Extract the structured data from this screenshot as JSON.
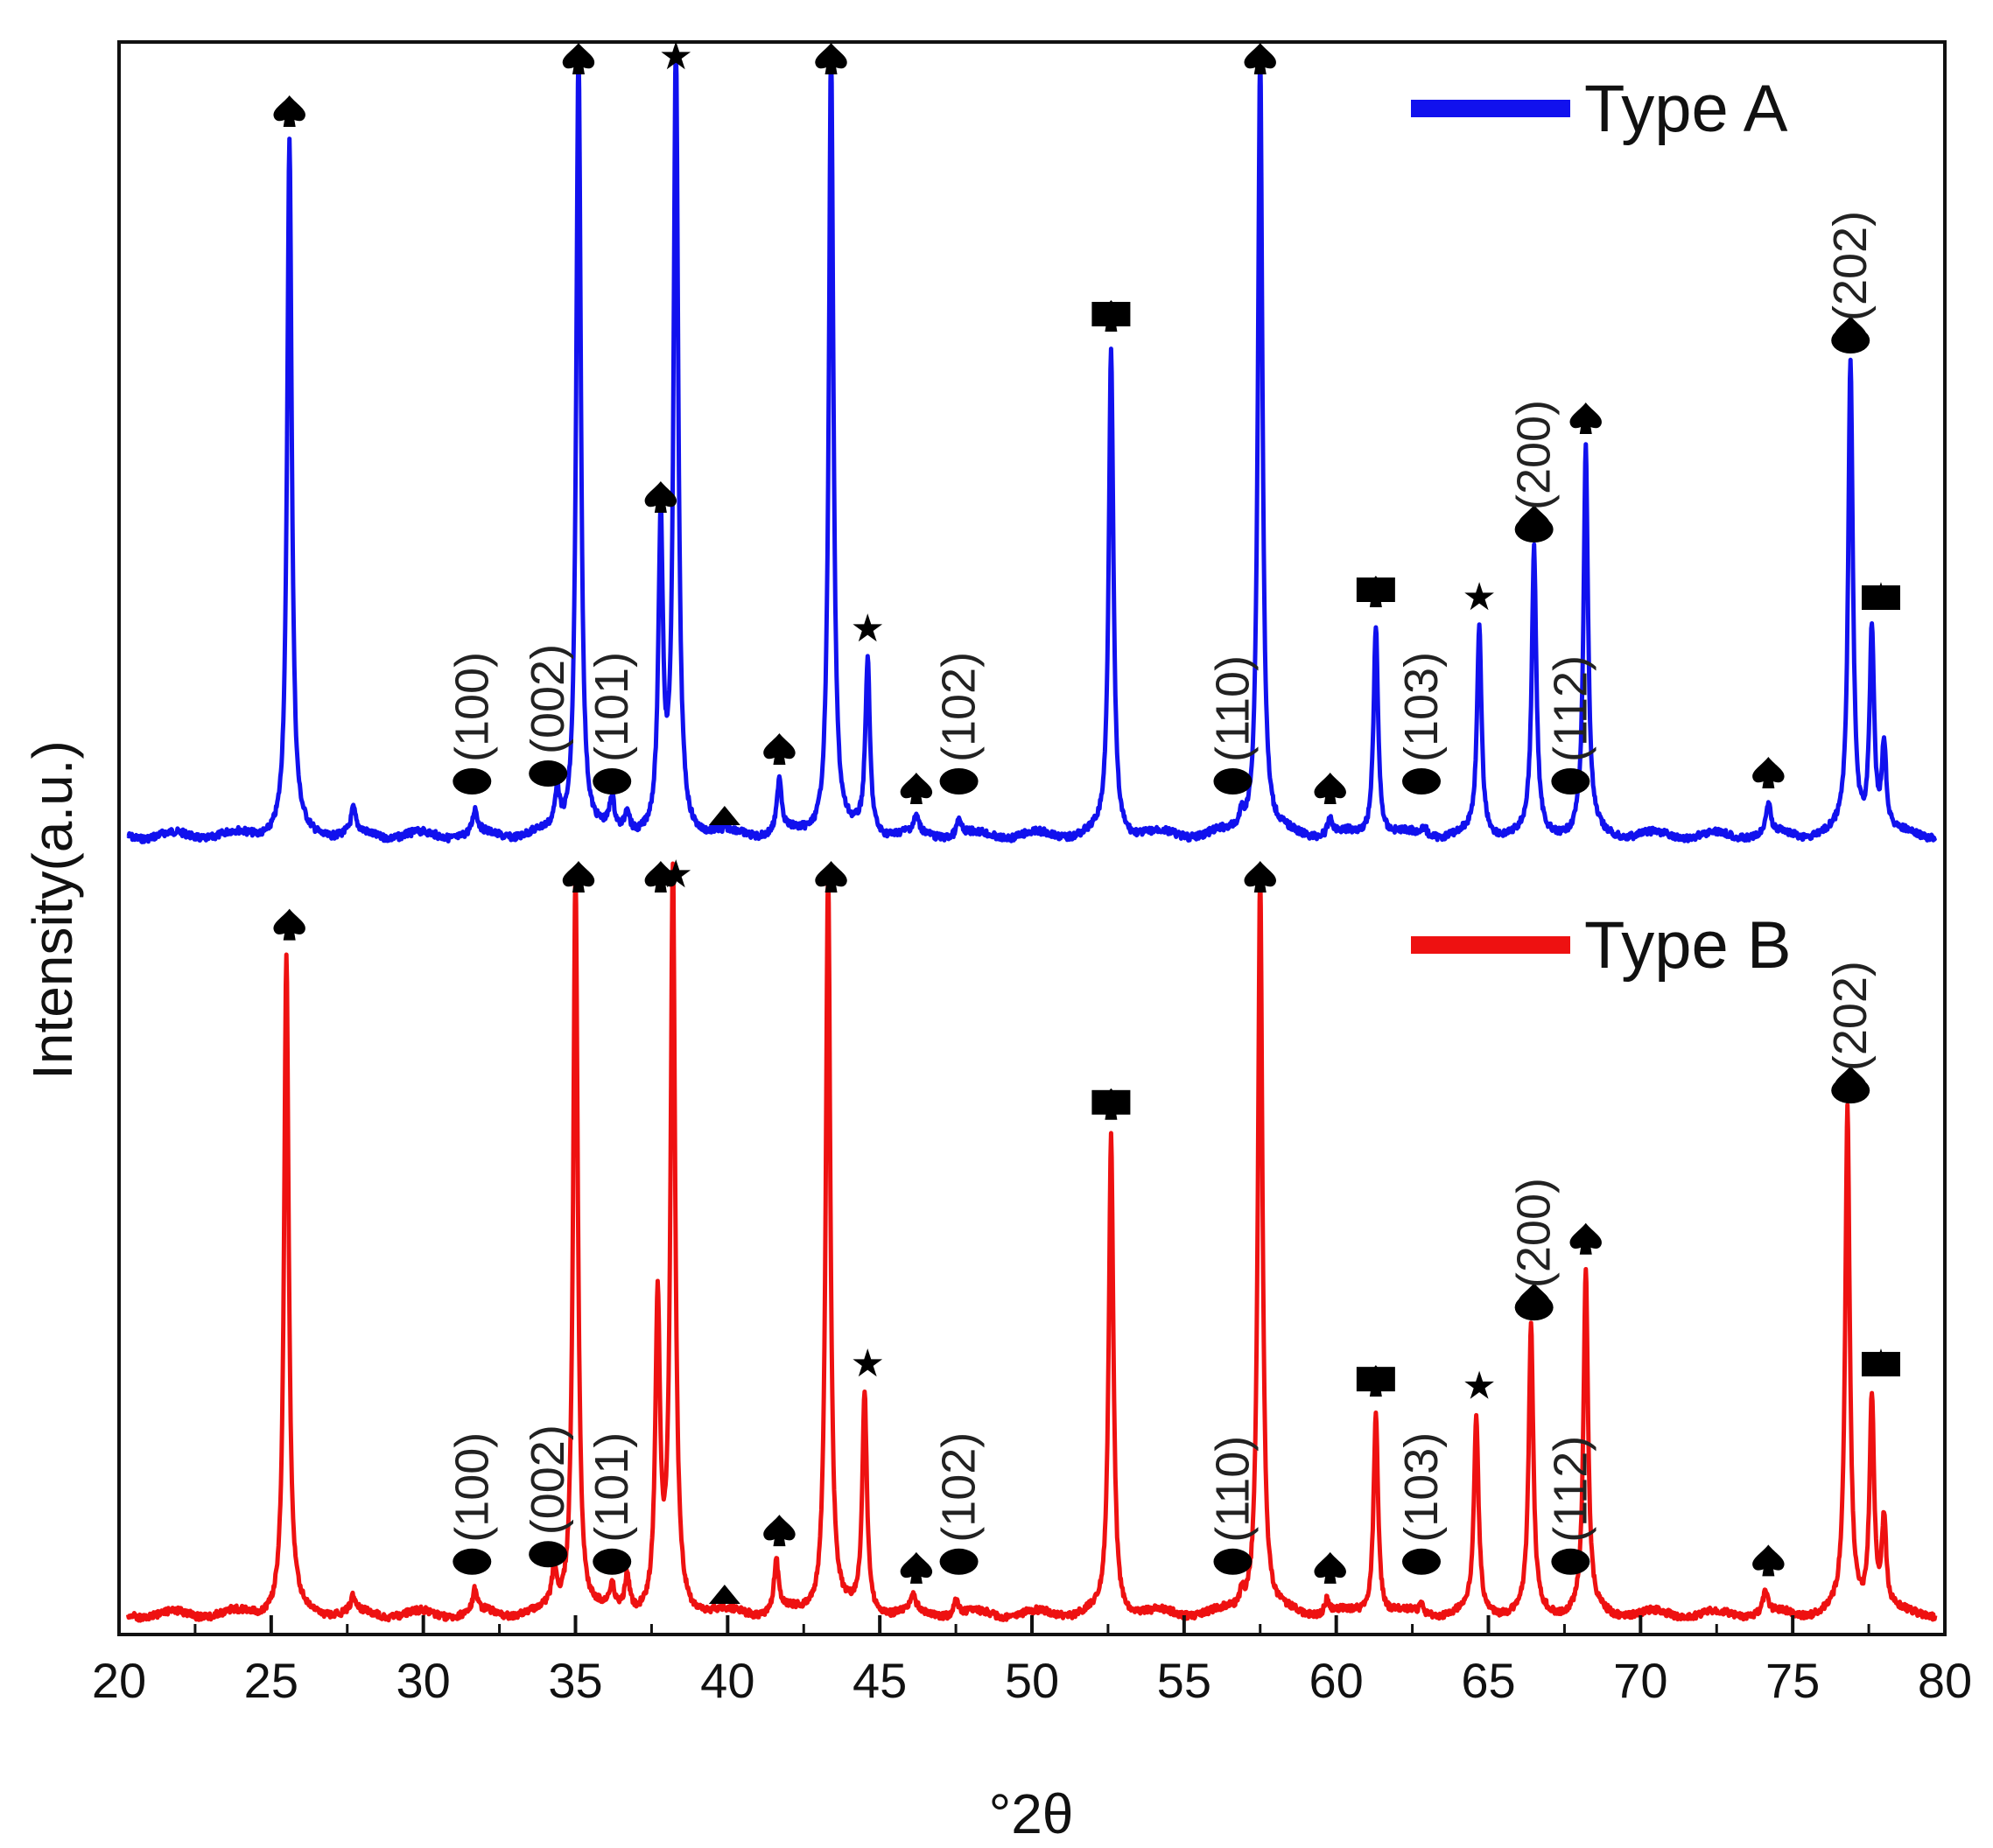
{
  "chart_data": {
    "type": "line",
    "title": "",
    "xlabel": "°2θ",
    "ylabel": "Intensity(a.u.)",
    "xlim": [
      20,
      80
    ],
    "x_ticks": [
      20,
      25,
      30,
      35,
      40,
      45,
      50,
      55,
      60,
      65,
      70,
      75,
      80
    ],
    "x_tick_labels": [
      "20",
      "25",
      "30",
      "35",
      "40",
      "45",
      "50",
      "55",
      "60",
      "65",
      "70",
      "75",
      "80"
    ],
    "legend_position": "top-right",
    "series": [
      {
        "name": "Type A",
        "color": "#1111ee",
        "panel": "top",
        "peaks": [
          {
            "x": 25.6,
            "y": 0.88
          },
          {
            "x": 27.7,
            "y": 0.03
          },
          {
            "x": 31.7,
            "y": 0.03
          },
          {
            "x": 34.4,
            "y": 0.05
          },
          {
            "x": 35.1,
            "y": 1.0
          },
          {
            "x": 36.2,
            "y": 0.04
          },
          {
            "x": 36.7,
            "y": 0.03
          },
          {
            "x": 37.8,
            "y": 0.39
          },
          {
            "x": 38.3,
            "y": 1.0
          },
          {
            "x": 41.7,
            "y": 0.07
          },
          {
            "x": 43.4,
            "y": 1.0
          },
          {
            "x": 44.6,
            "y": 0.22
          },
          {
            "x": 46.2,
            "y": 0.02
          },
          {
            "x": 47.6,
            "y": 0.02
          },
          {
            "x": 52.6,
            "y": 0.62
          },
          {
            "x": 56.9,
            "y": 0.02
          },
          {
            "x": 57.5,
            "y": 1.0
          },
          {
            "x": 59.8,
            "y": 0.02
          },
          {
            "x": 61.3,
            "y": 0.27
          },
          {
            "x": 62.9,
            "y": 0.01
          },
          {
            "x": 64.7,
            "y": 0.26
          },
          {
            "x": 66.5,
            "y": 0.36
          },
          {
            "x": 68.2,
            "y": 0.49
          },
          {
            "x": 74.2,
            "y": 0.04
          },
          {
            "x": 76.9,
            "y": 0.6
          },
          {
            "x": 77.6,
            "y": 0.26
          },
          {
            "x": 78.0,
            "y": 0.11
          }
        ]
      },
      {
        "name": "Type B",
        "color": "#ee1111",
        "panel": "bottom",
        "peaks": [
          {
            "x": 25.5,
            "y": 0.88
          },
          {
            "x": 27.7,
            "y": 0.02
          },
          {
            "x": 31.7,
            "y": 0.03
          },
          {
            "x": 34.3,
            "y": 0.05
          },
          {
            "x": 35.0,
            "y": 1.0
          },
          {
            "x": 36.2,
            "y": 0.03
          },
          {
            "x": 36.7,
            "y": 0.05
          },
          {
            "x": 37.7,
            "y": 0.41
          },
          {
            "x": 38.2,
            "y": 1.0
          },
          {
            "x": 41.6,
            "y": 0.07
          },
          {
            "x": 43.3,
            "y": 1.0
          },
          {
            "x": 44.5,
            "y": 0.29
          },
          {
            "x": 46.1,
            "y": 0.02
          },
          {
            "x": 47.5,
            "y": 0.02
          },
          {
            "x": 52.6,
            "y": 0.64
          },
          {
            "x": 56.9,
            "y": 0.02
          },
          {
            "x": 57.5,
            "y": 1.0
          },
          {
            "x": 59.7,
            "y": 0.02
          },
          {
            "x": 61.3,
            "y": 0.27
          },
          {
            "x": 62.8,
            "y": 0.01
          },
          {
            "x": 64.6,
            "y": 0.26
          },
          {
            "x": 66.4,
            "y": 0.38
          },
          {
            "x": 68.2,
            "y": 0.46
          },
          {
            "x": 74.1,
            "y": 0.03
          },
          {
            "x": 76.8,
            "y": 0.67
          },
          {
            "x": 77.6,
            "y": 0.29
          },
          {
            "x": 78.0,
            "y": 0.12
          }
        ]
      }
    ],
    "annotations": [
      {
        "label": "(100)",
        "x": 31.6,
        "marker": "ellipse"
      },
      {
        "label": "(002)",
        "x": 34.1,
        "marker": "ellipse"
      },
      {
        "label": "(101)",
        "x": 36.2,
        "marker": "ellipse"
      },
      {
        "label": "(102)",
        "x": 47.6,
        "marker": "ellipse"
      },
      {
        "label": "(110)",
        "x": 56.6,
        "marker": "ellipse"
      },
      {
        "label": "(103)",
        "x": 62.8,
        "marker": "ellipse"
      },
      {
        "label": "(200)",
        "x": 66.5,
        "marker": "ellipse"
      },
      {
        "label": "(112)",
        "x": 67.7,
        "marker": "ellipse"
      },
      {
        "label": "(202)",
        "x": 76.9,
        "marker": "ellipse"
      }
    ],
    "phase_markers": [
      {
        "x": 25.6,
        "symbol": "spade"
      },
      {
        "x": 35.1,
        "symbol": "spade"
      },
      {
        "x": 38.3,
        "symbol": "star"
      },
      {
        "x": 43.4,
        "symbol": "spade"
      },
      {
        "x": 57.5,
        "symbol": "spade"
      },
      {
        "x": 37.8,
        "symbol": "spade"
      },
      {
        "x": 44.6,
        "symbol": "star"
      },
      {
        "x": 41.7,
        "symbol": "spade"
      },
      {
        "x": 39.9,
        "symbol": "triangle"
      },
      {
        "x": 46.2,
        "symbol": "spade"
      },
      {
        "x": 52.6,
        "symbol": "spade"
      },
      {
        "x": 52.6,
        "symbol": "square"
      },
      {
        "x": 59.8,
        "symbol": "spade"
      },
      {
        "x": 61.3,
        "symbol": "spade"
      },
      {
        "x": 61.3,
        "symbol": "square"
      },
      {
        "x": 64.7,
        "symbol": "star"
      },
      {
        "x": 66.5,
        "symbol": "spade"
      },
      {
        "x": 68.2,
        "symbol": "spade"
      },
      {
        "x": 74.2,
        "symbol": "spade"
      },
      {
        "x": 76.9,
        "symbol": "spade"
      },
      {
        "x": 77.9,
        "symbol": "star"
      },
      {
        "x": 77.9,
        "symbol": "square"
      }
    ]
  }
}
